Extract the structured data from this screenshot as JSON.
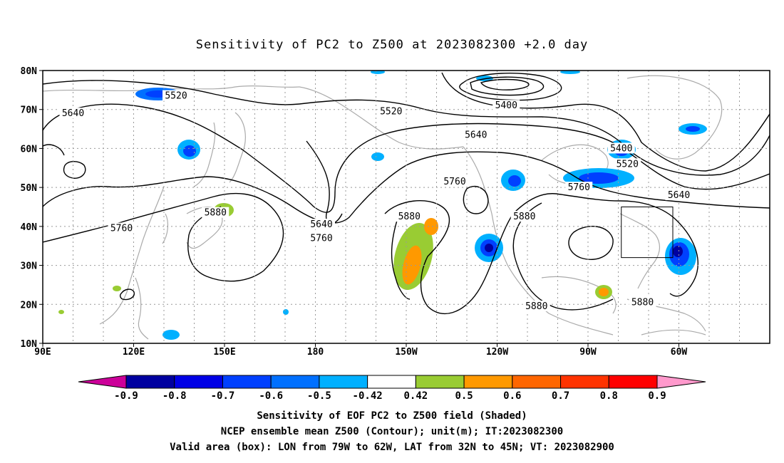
{
  "title": "Sensitivity of PC2 to Z500 at 2023082300 +2.0 day",
  "lat_ticks": [
    "80N",
    "70N",
    "60N",
    "50N",
    "40N",
    "30N",
    "20N",
    "10N"
  ],
  "lon_ticks": [
    "90E",
    "120E",
    "150E",
    "180",
    "150W",
    "120W",
    "90W",
    "60W"
  ],
  "contour_labels": [
    {
      "text": "5520",
      "lon": 134,
      "lat": 73.5
    },
    {
      "text": "5640",
      "lon": 100,
      "lat": 69.0
    },
    {
      "text": "5520",
      "lon": 205,
      "lat": 69.5
    },
    {
      "text": "5400",
      "lon": 243,
      "lat": 71.0
    },
    {
      "text": "5640",
      "lon": 233,
      "lat": 63.5
    },
    {
      "text": "5400",
      "lon": 281,
      "lat": 60.0
    },
    {
      "text": "5520",
      "lon": 283,
      "lat": 56.0
    },
    {
      "text": "5760",
      "lon": 226,
      "lat": 51.5
    },
    {
      "text": "5760",
      "lon": 267,
      "lat": 50.0
    },
    {
      "text": "5640",
      "lon": 300,
      "lat": 48.0
    },
    {
      "text": "5880",
      "lon": 147,
      "lat": 43.5
    },
    {
      "text": "5760",
      "lon": 116,
      "lat": 39.5
    },
    {
      "text": "5640",
      "lon": 182,
      "lat": 40.5
    },
    {
      "text": "5760",
      "lon": 182,
      "lat": 37.0
    },
    {
      "text": "5880",
      "lon": 211,
      "lat": 42.5
    },
    {
      "text": "5880",
      "lon": 249,
      "lat": 42.5
    },
    {
      "text": "5880",
      "lon": 253,
      "lat": 19.5
    },
    {
      "text": "5880",
      "lon": 288,
      "lat": 20.5
    }
  ],
  "colorbar": {
    "labels": [
      "-0.9",
      "-0.8",
      "-0.7",
      "-0.6",
      "-0.5",
      "-0.42",
      "0.42",
      "0.5",
      "0.6",
      "0.7",
      "0.8",
      "0.9"
    ],
    "colors": [
      "#0000a0",
      "#0000e6",
      "#0040ff",
      "#0070ff",
      "#00b0ff",
      "#ffffff",
      "#99cc33",
      "#ff9900",
      "#ff6600",
      "#ff3300",
      "#ff0000"
    ],
    "low_color": "#cc0099",
    "high_color": "#ff99cc"
  },
  "footer": [
    "Sensitivity of EOF PC2 to Z500 field (Shaded)",
    "NCEP ensemble mean Z500 (Contour); unit(m); IT:2023082300",
    "Valid area (box): LON from 79W to 62W, LAT from 32N to 45N; VT: 2023082900"
  ],
  "valid_box": {
    "lon_min": -79,
    "lon_max": -62,
    "lat_min": 32,
    "lat_max": 45
  },
  "colors": {
    "contour": "#000000",
    "coast": "#aaaaaa",
    "grid": "#999999"
  }
}
